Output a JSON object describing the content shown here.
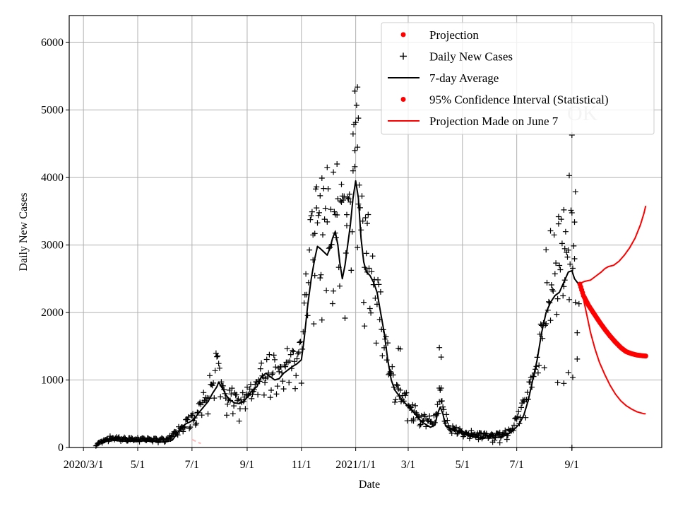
{
  "chart_data": {
    "type": "line",
    "xlabel": "Date",
    "ylabel": "Daily New Cases",
    "ylim": [
      0,
      6400
    ],
    "xlim_day_index": [
      -16,
      650
    ],
    "x_axis_origin": "2020-03-01",
    "y_ticks": [
      0,
      1000,
      2000,
      3000,
      4000,
      5000,
      6000
    ],
    "x_ticks": [
      {
        "label": "2020/3/1",
        "day": 0
      },
      {
        "label": "5/1",
        "day": 61
      },
      {
        "label": "7/1",
        "day": 122
      },
      {
        "label": "9/1",
        "day": 184
      },
      {
        "label": "11/1",
        "day": 245
      },
      {
        "label": "2021/1/1",
        "day": 306
      },
      {
        "label": "3/1",
        "day": 365
      },
      {
        "label": "5/1",
        "day": 426
      },
      {
        "label": "7/1",
        "day": 487
      },
      {
        "label": "9/1",
        "day": 549
      }
    ],
    "legend": {
      "placement": "top-right",
      "entries": [
        {
          "label": "Projection",
          "marker": "dot",
          "color": "#ff0000"
        },
        {
          "label": "Daily New Cases",
          "marker": "plus",
          "color": "#000000"
        },
        {
          "label": "7-day Average",
          "marker": "line",
          "color": "#000000"
        },
        {
          "label": "95% Confidence Interval (Statistical)",
          "marker": "dot",
          "color": "#ff0000"
        },
        {
          "label": "Projection Made on June 7",
          "marker": "line",
          "color": "#ff0000"
        }
      ]
    },
    "annotation": "OK",
    "colors": {
      "cases": "#000000",
      "projection": "#ff0000",
      "old_projection": "#ffb6b6",
      "grid": "#b0b0b0"
    },
    "avg_anchors": [
      [
        14,
        30
      ],
      [
        20,
        80
      ],
      [
        30,
        110
      ],
      [
        40,
        100
      ],
      [
        50,
        90
      ],
      [
        60,
        100
      ],
      [
        70,
        95
      ],
      [
        80,
        90
      ],
      [
        90,
        80
      ],
      [
        95,
        90
      ],
      [
        100,
        110
      ],
      [
        105,
        200
      ],
      [
        110,
        300
      ],
      [
        115,
        350
      ],
      [
        120,
        380
      ],
      [
        125,
        430
      ],
      [
        130,
        520
      ],
      [
        135,
        600
      ],
      [
        140,
        680
      ],
      [
        145,
        800
      ],
      [
        150,
        900
      ],
      [
        152,
        970
      ],
      [
        155,
        900
      ],
      [
        158,
        840
      ],
      [
        160,
        780
      ],
      [
        165,
        700
      ],
      [
        170,
        660
      ],
      [
        175,
        650
      ],
      [
        180,
        680
      ],
      [
        185,
        760
      ],
      [
        190,
        850
      ],
      [
        195,
        900
      ],
      [
        200,
        1050
      ],
      [
        205,
        1100
      ],
      [
        210,
        1050
      ],
      [
        215,
        1000
      ],
      [
        220,
        1020
      ],
      [
        225,
        1100
      ],
      [
        230,
        1150
      ],
      [
        235,
        1200
      ],
      [
        240,
        1240
      ],
      [
        245,
        1300
      ],
      [
        248,
        1600
      ],
      [
        252,
        2100
      ],
      [
        256,
        2500
      ],
      [
        260,
        2800
      ],
      [
        263,
        2980
      ],
      [
        266,
        2950
      ],
      [
        270,
        2900
      ],
      [
        274,
        2850
      ],
      [
        277,
        2950
      ],
      [
        280,
        3100
      ],
      [
        283,
        3200
      ],
      [
        286,
        3000
      ],
      [
        288,
        2750
      ],
      [
        291,
        2500
      ],
      [
        294,
        2700
      ],
      [
        297,
        3000
      ],
      [
        300,
        3300
      ],
      [
        303,
        3700
      ],
      [
        306,
        3950
      ],
      [
        309,
        3700
      ],
      [
        312,
        3100
      ],
      [
        315,
        2750
      ],
      [
        318,
        2600
      ],
      [
        322,
        2550
      ],
      [
        326,
        2450
      ],
      [
        330,
        2300
      ],
      [
        334,
        2000
      ],
      [
        338,
        1700
      ],
      [
        342,
        1300
      ],
      [
        346,
        1000
      ],
      [
        350,
        850
      ],
      [
        354,
        780
      ],
      [
        358,
        700
      ],
      [
        362,
        650
      ],
      [
        366,
        600
      ],
      [
        370,
        540
      ],
      [
        375,
        460
      ],
      [
        380,
        380
      ],
      [
        385,
        340
      ],
      [
        390,
        300
      ],
      [
        395,
        330
      ],
      [
        398,
        500
      ],
      [
        401,
        600
      ],
      [
        404,
        500
      ],
      [
        407,
        320
      ],
      [
        412,
        280
      ],
      [
        418,
        250
      ],
      [
        425,
        220
      ],
      [
        430,
        190
      ],
      [
        440,
        150
      ],
      [
        450,
        140
      ],
      [
        460,
        140
      ],
      [
        470,
        160
      ],
      [
        475,
        180
      ],
      [
        480,
        220
      ],
      [
        485,
        280
      ],
      [
        490,
        350
      ],
      [
        495,
        480
      ],
      [
        500,
        700
      ],
      [
        505,
        1000
      ],
      [
        510,
        1300
      ],
      [
        515,
        1700
      ],
      [
        520,
        2000
      ],
      [
        525,
        2150
      ],
      [
        530,
        2250
      ],
      [
        535,
        2300
      ],
      [
        540,
        2450
      ],
      [
        545,
        2600
      ],
      [
        549,
        2620
      ],
      [
        552,
        2500
      ],
      [
        556,
        2430
      ]
    ],
    "case_anchors": [
      [
        14,
        40
      ],
      [
        30,
        140
      ],
      [
        60,
        120
      ],
      [
        95,
        120
      ],
      [
        110,
        300
      ],
      [
        125,
        450
      ],
      [
        140,
        800
      ],
      [
        150,
        1250
      ],
      [
        160,
        800
      ],
      [
        175,
        650
      ],
      [
        190,
        900
      ],
      [
        205,
        1150
      ],
      [
        225,
        1200
      ],
      [
        245,
        1400
      ],
      [
        255,
        2900
      ],
      [
        265,
        3350
      ],
      [
        275,
        3200
      ],
      [
        285,
        3050
      ],
      [
        295,
        3100
      ],
      [
        303,
        4000
      ],
      [
        306,
        4600
      ],
      [
        310,
        3300
      ],
      [
        320,
        2900
      ],
      [
        330,
        2200
      ],
      [
        340,
        1500
      ],
      [
        350,
        850
      ],
      [
        365,
        650
      ],
      [
        380,
        420
      ],
      [
        395,
        400
      ],
      [
        401,
        800
      ],
      [
        410,
        300
      ],
      [
        430,
        200
      ],
      [
        460,
        170
      ],
      [
        480,
        230
      ],
      [
        500,
        800
      ],
      [
        515,
        1700
      ],
      [
        530,
        2700
      ],
      [
        545,
        3000
      ],
      [
        549,
        3000
      ],
      [
        553,
        2500
      ]
    ],
    "case_outliers": [
      [
        305,
        5280
      ],
      [
        308,
        5340
      ],
      [
        309,
        4880
      ],
      [
        305,
        4400
      ],
      [
        308,
        4450
      ],
      [
        303,
        4100
      ],
      [
        290,
        3900
      ],
      [
        285,
        4200
      ],
      [
        281,
        4080
      ],
      [
        274,
        4150
      ],
      [
        266,
        3730
      ],
      [
        262,
        3550
      ],
      [
        296,
        3450
      ],
      [
        283,
        3450
      ],
      [
        260,
        3170
      ],
      [
        258,
        3150
      ],
      [
        319,
        2600
      ],
      [
        316,
        1800
      ],
      [
        268,
        1890
      ],
      [
        354,
        1470
      ],
      [
        356,
        1460
      ],
      [
        369,
        400
      ],
      [
        371,
        420
      ],
      [
        400,
        1480
      ],
      [
        402,
        1340
      ],
      [
        400,
        880
      ],
      [
        402,
        880
      ],
      [
        436,
        250
      ],
      [
        444,
        120
      ],
      [
        460,
        80
      ],
      [
        468,
        70
      ],
      [
        476,
        120
      ],
      [
        520,
        2930
      ],
      [
        525,
        3210
      ],
      [
        534,
        3420
      ],
      [
        540,
        3520
      ],
      [
        541,
        2480
      ],
      [
        546,
        4030
      ],
      [
        549,
        4630
      ],
      [
        552,
        3340
      ],
      [
        553,
        3790
      ],
      [
        545,
        1110
      ],
      [
        550,
        1040
      ],
      [
        533,
        960
      ],
      [
        540,
        950
      ],
      [
        555,
        1700
      ],
      [
        555,
        1310
      ],
      [
        557,
        2130
      ],
      [
        549,
        0
      ]
    ],
    "projection_central": [
      [
        558,
        2420
      ],
      [
        562,
        2250
      ],
      [
        568,
        2100
      ],
      [
        574,
        1980
      ],
      [
        580,
        1860
      ],
      [
        586,
        1750
      ],
      [
        592,
        1650
      ],
      [
        598,
        1560
      ],
      [
        604,
        1480
      ],
      [
        610,
        1420
      ],
      [
        616,
        1390
      ],
      [
        622,
        1370
      ],
      [
        628,
        1360
      ],
      [
        632,
        1355
      ]
    ],
    "ci_upper": [
      [
        558,
        2430
      ],
      [
        563,
        2460
      ],
      [
        570,
        2480
      ],
      [
        576,
        2540
      ],
      [
        582,
        2600
      ],
      [
        586,
        2650
      ],
      [
        590,
        2680
      ],
      [
        596,
        2700
      ],
      [
        602,
        2760
      ],
      [
        608,
        2850
      ],
      [
        614,
        2960
      ],
      [
        620,
        3100
      ],
      [
        626,
        3300
      ],
      [
        630,
        3470
      ],
      [
        632,
        3580
      ]
    ],
    "ci_lower": [
      [
        558,
        2420
      ],
      [
        562,
        2200
      ],
      [
        566,
        1950
      ],
      [
        570,
        1700
      ],
      [
        575,
        1460
      ],
      [
        580,
        1260
      ],
      [
        586,
        1080
      ],
      [
        592,
        920
      ],
      [
        598,
        790
      ],
      [
        604,
        690
      ],
      [
        610,
        620
      ],
      [
        616,
        570
      ],
      [
        622,
        530
      ],
      [
        630,
        500
      ],
      [
        632,
        500
      ]
    ],
    "old_projection": [
      [
        122,
        120
      ],
      [
        128,
        80
      ],
      [
        132,
        60
      ]
    ]
  }
}
